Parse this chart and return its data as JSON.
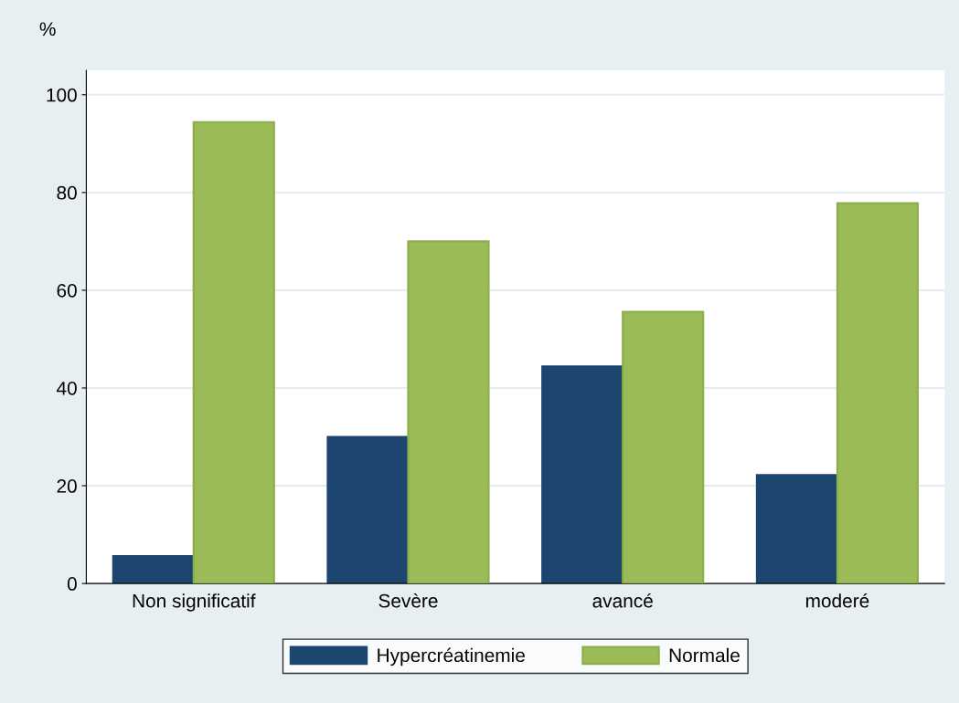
{
  "chart_data": {
    "type": "bar",
    "ylabel": "%",
    "categories": [
      "Non significatif",
      "Sevère",
      "avancé",
      "moderé"
    ],
    "series": [
      {
        "name": "Hypercréatinemie",
        "color": "#1c4670",
        "values": [
          5.6,
          30,
          44.4,
          22.2
        ]
      },
      {
        "name": "Normale",
        "color": "#9bbb59",
        "values": [
          94.4,
          70,
          55.6,
          77.8
        ]
      }
    ],
    "ylim": [
      0,
      105
    ],
    "yticks": [
      0,
      20,
      40,
      60,
      80,
      100
    ],
    "grid": "y",
    "legend": "bottom"
  }
}
